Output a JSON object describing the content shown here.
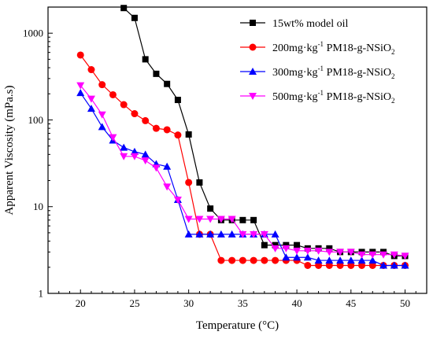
{
  "chart_data": {
    "type": "line",
    "title": "",
    "xlabel": "Temperature (°C)",
    "ylabel": "Apparent Viscosity (mPa.s)",
    "xscale": "linear",
    "yscale": "log",
    "xlim": [
      17,
      52
    ],
    "ylim": [
      1,
      2000
    ],
    "xticks": [
      20,
      25,
      30,
      35,
      40,
      45,
      50
    ],
    "yticks": [
      1,
      10,
      100,
      1000
    ],
    "grid": false,
    "legend_position": "top-right",
    "series": [
      {
        "name": "15wt% model oil",
        "color": "#000000",
        "marker": "square",
        "x": [
          24,
          25,
          26,
          27,
          28,
          29,
          30,
          31,
          32,
          33,
          34,
          35,
          36,
          37,
          38,
          39,
          40,
          41,
          42,
          43,
          44,
          45,
          46,
          47,
          48,
          49,
          50
        ],
        "y": [
          1950,
          1500,
          500,
          340,
          260,
          170,
          68,
          19,
          9.5,
          7.0,
          7.0,
          7.0,
          7.0,
          3.6,
          3.6,
          3.6,
          3.6,
          3.3,
          3.3,
          3.3,
          3.0,
          3.0,
          3.0,
          3.0,
          3.0,
          2.7,
          2.7
        ]
      },
      {
        "name_prefix": "200mg·kg",
        "name_sup": "-1",
        "name_main": " PM18-g-NSiO",
        "name_sub": "2",
        "color": "#ff0000",
        "marker": "circle",
        "x": [
          20,
          21,
          22,
          23,
          24,
          25,
          26,
          27,
          28,
          29,
          30,
          31,
          32,
          33,
          34,
          35,
          36,
          37,
          38,
          39,
          40,
          41,
          42,
          43,
          44,
          45,
          46,
          47,
          48,
          49,
          50
        ],
        "y": [
          560,
          380,
          255,
          195,
          150,
          118,
          98,
          80,
          77,
          67,
          19,
          4.8,
          4.8,
          2.4,
          2.4,
          2.4,
          2.4,
          2.4,
          2.4,
          2.4,
          2.4,
          2.1,
          2.1,
          2.1,
          2.1,
          2.1,
          2.1,
          2.1,
          2.1,
          2.1,
          2.1
        ]
      },
      {
        "name_prefix": "300mg·kg",
        "name_sup": "-1",
        "name_main": " PM18-g-NSiO",
        "name_sub": "2",
        "color": "#0000ff",
        "marker": "triangle-up",
        "x": [
          20,
          21,
          22,
          23,
          24,
          25,
          26,
          27,
          28,
          29,
          30,
          31,
          32,
          33,
          34,
          35,
          36,
          37,
          38,
          39,
          40,
          41,
          42,
          43,
          44,
          45,
          46,
          47,
          48,
          49,
          50
        ],
        "y": [
          205,
          135,
          83,
          58,
          48,
          43,
          40,
          31,
          29,
          12,
          4.8,
          4.8,
          4.8,
          4.8,
          4.8,
          4.8,
          4.8,
          4.8,
          4.8,
          2.6,
          2.6,
          2.6,
          2.4,
          2.4,
          2.4,
          2.4,
          2.4,
          2.4,
          2.1,
          2.1,
          2.1
        ]
      },
      {
        "name_prefix": "500mg·kg",
        "name_sup": "-1",
        "name_main": " PM18-g-NSiO",
        "name_sub": "2",
        "color": "#ff00ff",
        "marker": "triangle-down",
        "x": [
          20,
          21,
          22,
          23,
          24,
          25,
          26,
          27,
          28,
          29,
          30,
          31,
          32,
          33,
          34,
          35,
          36,
          37,
          38,
          39,
          40,
          41,
          42,
          43,
          44,
          45,
          46,
          47,
          48,
          49,
          50
        ],
        "y": [
          250,
          175,
          115,
          63,
          38,
          38,
          34,
          28,
          17,
          12,
          7.2,
          7.2,
          7.2,
          7.2,
          7.2,
          4.8,
          4.8,
          4.8,
          3.3,
          3.3,
          3.1,
          3.1,
          3.1,
          3.0,
          3.0,
          3.0,
          2.8,
          2.8,
          2.8,
          2.8,
          2.7
        ]
      }
    ]
  }
}
